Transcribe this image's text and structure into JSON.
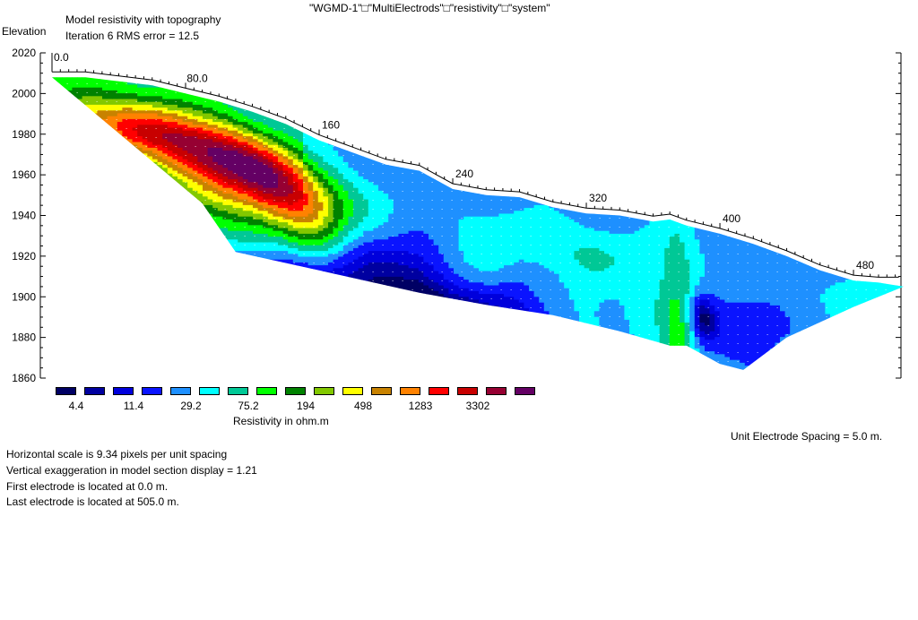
{
  "header": {
    "title": "\"WGMD-1\"□\"MultiElectrods\"□\"resistivity\"□\"system\"",
    "subtitle1": "Model resistivity with topography",
    "subtitle2": "Iteration 6 RMS error = 12.5"
  },
  "chart_data": {
    "type": "heatmap",
    "title": "Model resistivity with topography",
    "ylabel": "Elevation",
    "ylim": [
      1860,
      2020
    ],
    "y_ticks": [
      "2020",
      "2000",
      "1980",
      "1960",
      "1940",
      "1920",
      "1900",
      "1880",
      "1860"
    ],
    "xlim": [
      0,
      505
    ],
    "x_tick_labels": [
      "0.0",
      "80.0",
      "160",
      "240",
      "320",
      "400",
      "480"
    ],
    "x_tick_positions": [
      0,
      80,
      160,
      240,
      320,
      400,
      480
    ],
    "surface": [
      [
        0,
        2008
      ],
      [
        20,
        2008
      ],
      [
        40,
        2006
      ],
      [
        60,
        2004
      ],
      [
        80,
        2000
      ],
      [
        100,
        1996
      ],
      [
        120,
        1991
      ],
      [
        140,
        1985
      ],
      [
        160,
        1977
      ],
      [
        180,
        1971
      ],
      [
        200,
        1965
      ],
      [
        220,
        1962
      ],
      [
        240,
        1953
      ],
      [
        260,
        1950
      ],
      [
        280,
        1949
      ],
      [
        300,
        1944
      ],
      [
        320,
        1941
      ],
      [
        340,
        1940
      ],
      [
        360,
        1937
      ],
      [
        370,
        1938
      ],
      [
        380,
        1935
      ],
      [
        400,
        1931
      ],
      [
        420,
        1926
      ],
      [
        440,
        1920
      ],
      [
        460,
        1913
      ],
      [
        480,
        1908
      ],
      [
        495,
        1907
      ]
    ],
    "bottom": [
      [
        0,
        2008
      ],
      [
        90,
        1946
      ],
      [
        110,
        1922
      ],
      [
        160,
        1913
      ],
      [
        220,
        1902
      ],
      [
        260,
        1896
      ],
      [
        300,
        1891
      ],
      [
        340,
        1883
      ],
      [
        370,
        1876
      ],
      [
        380,
        1876
      ],
      [
        400,
        1867
      ],
      [
        414,
        1864
      ],
      [
        440,
        1880
      ],
      [
        480,
        1895
      ],
      [
        510,
        1905
      ]
    ],
    "legend": {
      "title": "Resistivity in ohm.m",
      "colors": [
        "#000064",
        "#0000a0",
        "#0000dc",
        "#0a14ff",
        "#1e90ff",
        "#00ffff",
        "#00c896",
        "#00ff00",
        "#008200",
        "#82c800",
        "#ffff00",
        "#c88200",
        "#ff8200",
        "#ff0000",
        "#c80000",
        "#960032",
        "#640064"
      ],
      "labels": [
        "4.4",
        "11.4",
        "29.2",
        "75.2",
        "194",
        "498",
        "1283",
        "3302"
      ]
    }
  },
  "footer": {
    "spacing": "Unit Electrode Spacing = 5.0 m.",
    "line1": "Horizontal scale is 9.34 pixels per unit spacing",
    "line2": "Vertical exaggeration in model section display = 1.21",
    "line3": "First electrode is located at 0.0  m.",
    "line4": "Last electrode is located at 505.0 m."
  }
}
